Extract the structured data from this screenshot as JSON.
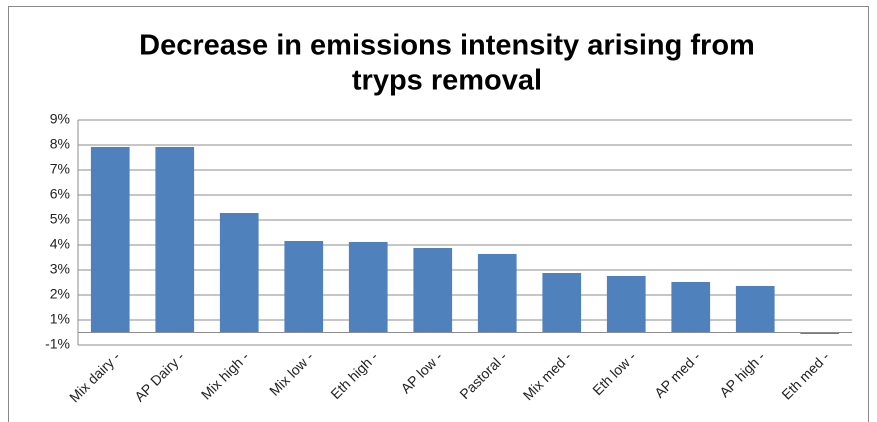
{
  "chart_data": {
    "type": "bar",
    "title": [
      "Decrease in emissions intensity arising from",
      "tryps removal"
    ],
    "categories": [
      "Mix dairy -",
      "AP Dairy -",
      "Mix high -",
      "Mix low -",
      "Eth high -",
      "AP low -",
      "Pastoral -",
      "Mix med -",
      "Eth low -",
      "AP med -",
      "AP high -",
      "Eth med -"
    ],
    "values": [
      7.42,
      7.42,
      4.78,
      3.66,
      3.62,
      3.38,
      3.14,
      2.38,
      2.26,
      2.02,
      1.86,
      -0.06
    ],
    "color": "#4f81bd",
    "ylim": [
      -0.5,
      8.5
    ],
    "yticks": [
      {
        "value": -0.5,
        "label": "-1%"
      },
      {
        "value": 0.5,
        "label": "1%"
      },
      {
        "value": 1.5,
        "label": "2%"
      },
      {
        "value": 2.5,
        "label": "3%"
      },
      {
        "value": 3.5,
        "label": "4%"
      },
      {
        "value": 4.5,
        "label": "5%"
      },
      {
        "value": 5.5,
        "label": "6%"
      },
      {
        "value": 6.5,
        "label": "7%"
      },
      {
        "value": 7.5,
        "label": "8%"
      },
      {
        "value": 8.5,
        "label": "9%"
      }
    ],
    "grid": true
  }
}
